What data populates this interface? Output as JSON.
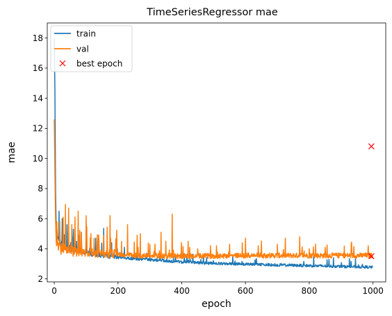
{
  "chart_data": {
    "type": "line",
    "title": "TimeSeriesRegressor mae",
    "xlabel": "epoch",
    "ylabel": "mae",
    "xlim": [
      -22,
      1040
    ],
    "ylim": [
      1.8,
      19.0
    ],
    "xticks": [
      0,
      200,
      400,
      600,
      800,
      1000
    ],
    "yticks": [
      2,
      4,
      6,
      8,
      10,
      12,
      14,
      16,
      18
    ],
    "grid": false,
    "legend_position": "top-left",
    "series": [
      {
        "name": "train",
        "color": "#1f77b4",
        "anchors": [
          [
            0,
            18.0
          ],
          [
            2,
            14.5
          ],
          [
            4,
            8.0
          ],
          [
            6,
            5.5
          ],
          [
            10,
            4.8
          ],
          [
            20,
            4.3
          ],
          [
            40,
            4.0
          ],
          [
            80,
            3.8
          ],
          [
            120,
            3.6
          ],
          [
            160,
            3.5
          ],
          [
            200,
            3.4
          ],
          [
            260,
            3.3
          ],
          [
            300,
            3.25
          ],
          [
            360,
            3.15
          ],
          [
            400,
            3.1
          ],
          [
            500,
            3.0
          ],
          [
            600,
            2.95
          ],
          [
            700,
            2.9
          ],
          [
            800,
            2.85
          ],
          [
            900,
            2.8
          ],
          [
            1000,
            2.75
          ]
        ],
        "noise": 0.18,
        "spikes": [
          [
            15,
            6.5
          ],
          [
            25,
            6.0
          ],
          [
            40,
            5.6
          ],
          [
            60,
            5.3
          ],
          [
            85,
            5.1
          ],
          [
            100,
            4.9
          ],
          [
            130,
            4.7
          ],
          [
            155,
            5.35
          ],
          [
            180,
            4.4
          ],
          [
            220,
            4.1
          ],
          [
            260,
            3.9
          ],
          [
            300,
            3.7
          ],
          [
            340,
            3.6
          ],
          [
            380,
            3.5
          ]
        ]
      },
      {
        "name": "val",
        "color": "#ff7f0e",
        "anchors": [
          [
            0,
            12.6
          ],
          [
            2,
            9.0
          ],
          [
            4,
            6.0
          ],
          [
            6,
            4.5
          ],
          [
            10,
            4.0
          ],
          [
            30,
            3.8
          ],
          [
            80,
            3.7
          ],
          [
            150,
            3.6
          ],
          [
            250,
            3.5
          ],
          [
            400,
            3.45
          ],
          [
            600,
            3.5
          ],
          [
            800,
            3.5
          ],
          [
            1000,
            3.5
          ]
        ],
        "noise": 0.35,
        "spikes": [
          [
            8,
            5.8
          ],
          [
            18,
            5.0
          ],
          [
            28,
            6.1
          ],
          [
            35,
            6.95
          ],
          [
            45,
            6.7
          ],
          [
            55,
            5.6
          ],
          [
            65,
            6.1
          ],
          [
            75,
            6.5
          ],
          [
            85,
            5.1
          ],
          [
            100,
            6.2
          ],
          [
            115,
            5.0
          ],
          [
            125,
            4.7
          ],
          [
            140,
            4.6
          ],
          [
            155,
            4.9
          ],
          [
            175,
            6.2
          ],
          [
            195,
            4.4
          ],
          [
            230,
            5.6
          ],
          [
            260,
            4.9
          ],
          [
            270,
            5.0
          ],
          [
            300,
            4.3
          ],
          [
            335,
            5.1
          ],
          [
            350,
            4.5
          ],
          [
            370,
            6.3
          ],
          [
            420,
            4.5
          ],
          [
            450,
            4.0
          ],
          [
            490,
            4.2
          ],
          [
            550,
            4.3
          ],
          [
            600,
            4.7
          ],
          [
            640,
            4.2
          ],
          [
            700,
            4.3
          ],
          [
            770,
            4.8
          ],
          [
            800,
            4.0
          ],
          [
            820,
            4.3
          ],
          [
            850,
            4.1
          ],
          [
            940,
            4.15
          ],
          [
            985,
            4.2
          ]
        ]
      }
    ],
    "best_epoch": {
      "name": "best epoch",
      "color": "#ff0000",
      "points": [
        [
          995,
          10.8
        ],
        [
          995,
          3.5
        ]
      ]
    }
  }
}
